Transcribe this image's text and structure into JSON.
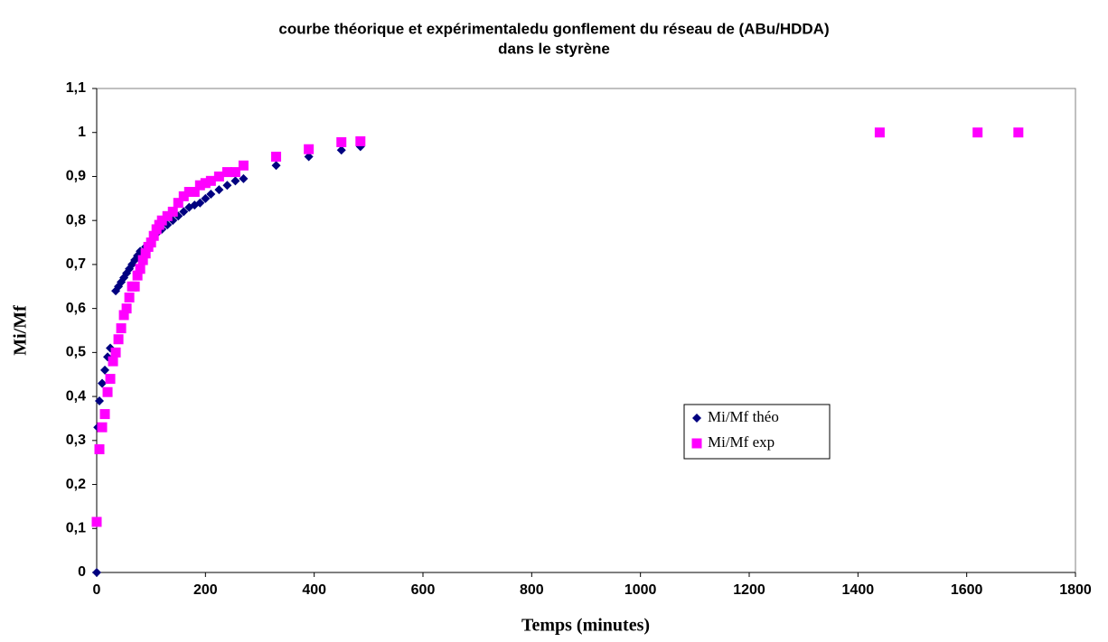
{
  "chart_data": {
    "type": "scatter",
    "title": [
      "courbe théorique et expérimentaledu gonflement du réseau de (ABu/HDDA)",
      "dans le styrène"
    ],
    "x_label": "Temps (minutes)",
    "y_label": "Mi/Mf",
    "xlim": [
      0,
      1800
    ],
    "xticks": [
      0,
      200,
      400,
      600,
      800,
      1000,
      1200,
      1400,
      1600,
      1800
    ],
    "ylim": [
      0,
      1.1
    ],
    "yticks": [
      0,
      {
        "value": 0.1,
        "label": "0,1"
      },
      {
        "value": 0.2,
        "label": "0,2"
      },
      {
        "value": 0.3,
        "label": "0,3"
      },
      {
        "value": 0.4,
        "label": "0,4"
      },
      {
        "value": 0.5,
        "label": "0,5"
      },
      {
        "value": 0.6,
        "label": "0,6"
      },
      {
        "value": 0.7,
        "label": "0,7"
      },
      {
        "value": 0.8,
        "label": "0,8"
      },
      {
        "value": 0.9,
        "label": "0,9"
      },
      1,
      {
        "value": 1.1,
        "label": "1,1"
      }
    ],
    "grid": false,
    "legend": "right",
    "series": [
      {
        "name": "Mi/Mf théo",
        "color": "#000080",
        "marker": "diamond",
        "x": [
          0,
          2,
          5,
          10,
          15,
          20,
          25,
          35,
          40,
          45,
          50,
          55,
          60,
          65,
          70,
          75,
          80,
          90,
          100,
          110,
          120,
          130,
          140,
          150,
          160,
          170,
          180,
          190,
          200,
          210,
          225,
          240,
          255,
          270,
          330,
          390,
          450,
          485
        ],
        "values": [
          0,
          0.33,
          0.39,
          0.43,
          0.46,
          0.49,
          0.51,
          0.64,
          0.65,
          0.66,
          0.67,
          0.68,
          0.69,
          0.7,
          0.71,
          0.72,
          0.73,
          0.74,
          0.755,
          0.77,
          0.78,
          0.79,
          0.8,
          0.81,
          0.82,
          0.83,
          0.835,
          0.84,
          0.85,
          0.86,
          0.87,
          0.88,
          0.89,
          0.895,
          0.925,
          0.945,
          0.96,
          0.968
        ]
      },
      {
        "name": "Mi/Mf exp",
        "color": "#ff00ff",
        "marker": "square",
        "x": [
          0,
          5,
          10,
          15,
          20,
          25,
          30,
          35,
          40,
          45,
          50,
          55,
          60,
          65,
          70,
          75,
          80,
          85,
          90,
          95,
          100,
          105,
          110,
          115,
          120,
          130,
          140,
          150,
          160,
          170,
          180,
          190,
          200,
          210,
          225,
          240,
          255,
          270,
          330,
          390,
          450,
          485,
          1440,
          1620,
          1695
        ],
        "values": [
          0.115,
          0.28,
          0.33,
          0.36,
          0.41,
          0.44,
          0.48,
          0.5,
          0.53,
          0.555,
          0.585,
          0.6,
          0.625,
          0.65,
          0.65,
          0.675,
          0.69,
          0.71,
          0.725,
          0.74,
          0.75,
          0.765,
          0.78,
          0.79,
          0.8,
          0.81,
          0.82,
          0.84,
          0.855,
          0.865,
          0.865,
          0.88,
          0.885,
          0.89,
          0.9,
          0.91,
          0.91,
          0.925,
          0.945,
          0.962,
          0.978,
          0.98,
          1.0,
          1.0,
          1.0
        ]
      }
    ]
  }
}
